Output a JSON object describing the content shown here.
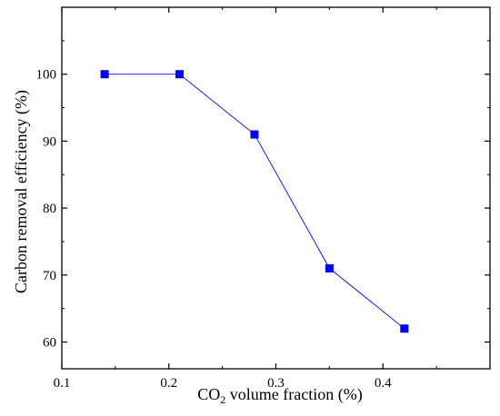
{
  "chart_data": {
    "type": "line",
    "title": "",
    "xlabel": {
      "prefix": "CO",
      "sub": "2",
      "suffix": " volume fraction (%)"
    },
    "ylabel": "Carbon removal efficiency (%)",
    "xlim": [
      0.1,
      0.5
    ],
    "ylim": [
      56,
      110
    ],
    "x_ticks": [
      0.1,
      0.2,
      0.3,
      0.4
    ],
    "x_tick_labels": [
      "0.1",
      "0.2",
      "0.3",
      "0.4"
    ],
    "y_ticks": [
      60,
      70,
      80,
      90,
      100
    ],
    "y_tick_labels": [
      "60",
      "70",
      "80",
      "90",
      "100"
    ],
    "grid": false,
    "legend": "none",
    "series": [
      {
        "x": [
          0.14,
          0.21,
          0.28,
          0.35,
          0.42
        ],
        "y": [
          100,
          100,
          91,
          71,
          62
        ],
        "color": "#0000FF",
        "marker": "square",
        "line": "solid-thin"
      }
    ]
  }
}
